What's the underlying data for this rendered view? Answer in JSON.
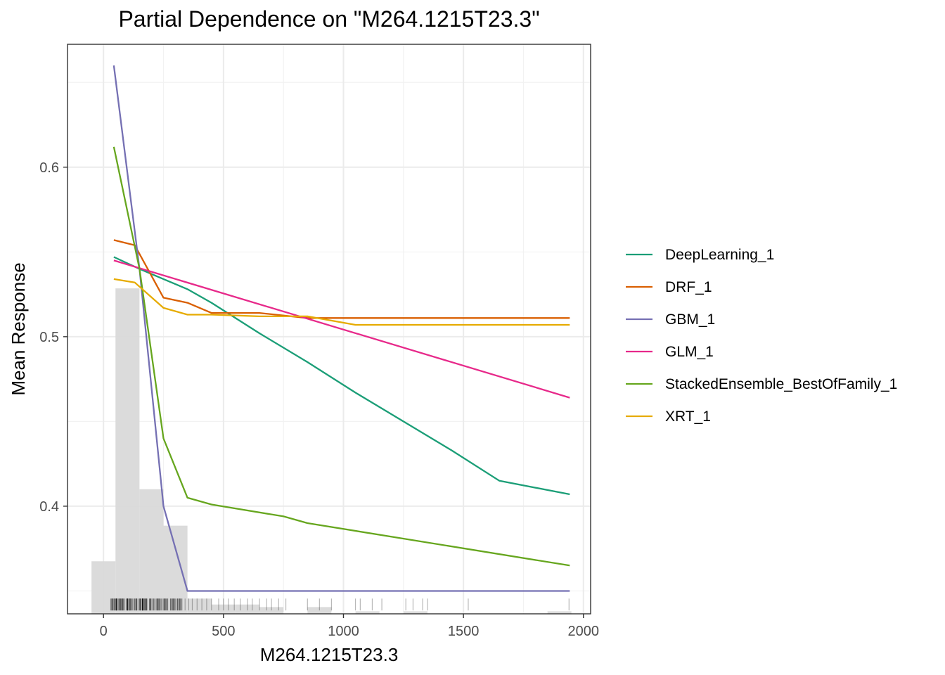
{
  "chart_data": {
    "type": "line",
    "title": "Partial Dependence on \"M264.1215T23.3\"",
    "xlabel": "M264.1215T23.3",
    "ylabel": "Mean Response",
    "xlim": [
      -150,
      2030
    ],
    "ylim": [
      0.3365,
      0.6725
    ],
    "x_ticks": [
      0,
      500,
      1000,
      1500,
      2000
    ],
    "y_ticks": [
      0.4,
      0.5,
      0.6
    ],
    "grid": true,
    "legend_position": "right",
    "series": [
      {
        "name": "DeepLearning_1",
        "color": "#1B9E77",
        "x": [
          43,
          150,
          250,
          350,
          450,
          650,
          850,
          1050,
          1250,
          1450,
          1650,
          1943
        ],
        "y": [
          0.547,
          0.54,
          0.534,
          0.528,
          0.52,
          0.502,
          0.485,
          0.467,
          0.45,
          0.433,
          0.415,
          0.407
        ]
      },
      {
        "name": "DRF_1",
        "color": "#D95F02",
        "x": [
          43,
          130,
          250,
          350,
          450,
          650,
          850,
          1943
        ],
        "y": [
          0.557,
          0.554,
          0.523,
          0.52,
          0.514,
          0.514,
          0.511,
          0.511
        ]
      },
      {
        "name": "GBM_1",
        "color": "#7570B3",
        "x": [
          43,
          150,
          250,
          350,
          1943
        ],
        "y": [
          0.66,
          0.54,
          0.4,
          0.35,
          0.35
        ]
      },
      {
        "name": "GLM_1",
        "color": "#E7298A",
        "x": [
          43,
          1943
        ],
        "y": [
          0.545,
          0.464
        ]
      },
      {
        "name": "StackedEnsemble_BestOfFamily_1",
        "color": "#66A61E",
        "x": [
          43,
          150,
          250,
          350,
          450,
          750,
          850,
          1943
        ],
        "y": [
          0.612,
          0.54,
          0.44,
          0.405,
          0.401,
          0.394,
          0.39,
          0.365
        ]
      },
      {
        "name": "XRT_1",
        "color": "#E6AB02",
        "x": [
          43,
          130,
          250,
          350,
          450,
          650,
          850,
          1050,
          1943
        ],
        "y": [
          0.534,
          0.532,
          0.517,
          0.513,
          0.513,
          0.512,
          0.512,
          0.507,
          0.507
        ]
      }
    ],
    "histogram": {
      "color": "#d9d9d9",
      "bins": [
        {
          "x0": -50,
          "x1": 50,
          "height": 0.3675
        },
        {
          "x0": 50,
          "x1": 150,
          "height": 0.5285
        },
        {
          "x0": 150,
          "x1": 250,
          "height": 0.41
        },
        {
          "x0": 250,
          "x1": 350,
          "height": 0.3885
        },
        {
          "x0": 350,
          "x1": 450,
          "height": 0.3455
        },
        {
          "x0": 450,
          "x1": 550,
          "height": 0.342
        },
        {
          "x0": 550,
          "x1": 650,
          "height": 0.342
        },
        {
          "x0": 650,
          "x1": 750,
          "height": 0.3405
        },
        {
          "x0": 850,
          "x1": 950,
          "height": 0.3405
        },
        {
          "x0": 1050,
          "x1": 1150,
          "height": 0.338
        },
        {
          "x0": 1250,
          "x1": 1350,
          "height": 0.338
        },
        {
          "x0": 1850,
          "x1": 1950,
          "height": 0.338
        }
      ]
    },
    "rug": {
      "dense_range": [
        30,
        330
      ],
      "sparse_x": [
        340,
        355,
        370,
        390,
        410,
        430,
        450,
        480,
        500,
        520,
        545,
        570,
        600,
        620,
        650,
        680,
        700,
        730,
        760,
        850,
        900,
        950,
        1050,
        1070,
        1120,
        1160,
        1260,
        1290,
        1330,
        1350,
        1520,
        1940
      ],
      "y0": 0.3385,
      "y1": 0.3455
    }
  }
}
